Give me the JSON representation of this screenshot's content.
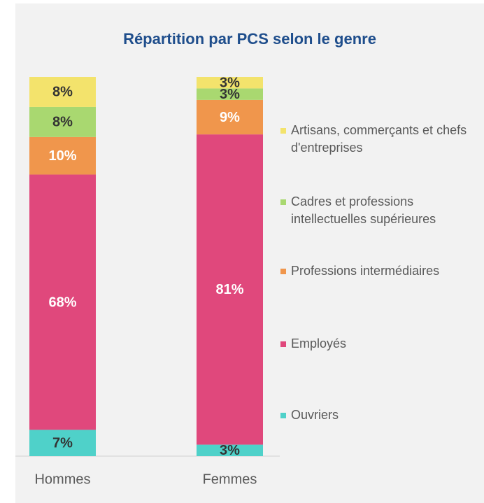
{
  "chart_data": {
    "type": "bar",
    "stacking": "percent",
    "title": "Répartition par PCS selon le genre",
    "categories": [
      "Hommes",
      "Femmes"
    ],
    "series": [
      {
        "name": "Ouvriers",
        "color": "#4fd1c9",
        "label_color": "#333333",
        "values": [
          7,
          3
        ],
        "value_labels": [
          "7%",
          "3%"
        ]
      },
      {
        "name": "Employés",
        "color": "#e0487c",
        "label_color": "#ffffff",
        "values": [
          68,
          81
        ],
        "value_labels": [
          "68%",
          "81%"
        ]
      },
      {
        "name": "Professions intermédiaires",
        "color": "#f0964c",
        "label_color": "#ffffff",
        "values": [
          10,
          9
        ],
        "value_labels": [
          "10%",
          "9%"
        ]
      },
      {
        "name": "Cadres et professions intellectuelles supérieures",
        "color": "#a9d870",
        "label_color": "#333333",
        "values": [
          8,
          3
        ],
        "value_labels": [
          "8%",
          "3%"
        ]
      },
      {
        "name": "Artisans, commerçants et chefs d'entreprises",
        "color": "#f3e36c",
        "label_color": "#333333",
        "values": [
          8,
          3
        ],
        "value_labels": [
          "8%",
          "3%"
        ]
      }
    ],
    "legend": "right"
  }
}
